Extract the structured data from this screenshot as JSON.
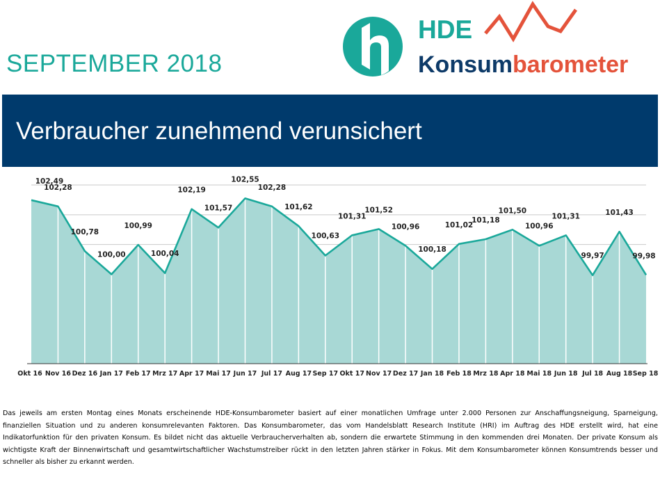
{
  "header": {
    "month_label": "SEPTEMBER 2018",
    "logo": {
      "mark_icon": "hde-h-logo-icon",
      "brand": "HDE",
      "product_prefix": "Konsum",
      "product_suffix": "barometer",
      "trend_icon": "zigzag-trend-icon",
      "colors": {
        "teal": "#1aa89a",
        "navy": "#0d3a68",
        "red": "#e4533b"
      }
    }
  },
  "banner": {
    "headline": "Verbraucher zunehmend verunsichert",
    "color": "#003a6c"
  },
  "chart_data": {
    "type": "area",
    "categories": [
      "Okt 16",
      "Nov 16",
      "Dez 16",
      "Jan 17",
      "Feb 17",
      "Mrz 17",
      "Apr 17",
      "Mai 17",
      "Jun 17",
      "Jul 17",
      "Aug 17",
      "Sep 17",
      "Okt 17",
      "Nov 17",
      "Dez 17",
      "Jan 18",
      "Feb 18",
      "Mrz 18",
      "Apr 18",
      "Mai 18",
      "Jun 18",
      "Jul 18",
      "Aug 18",
      "Sep 18"
    ],
    "values": [
      102.49,
      102.28,
      100.78,
      100.0,
      100.99,
      100.04,
      102.19,
      101.57,
      102.55,
      102.28,
      101.62,
      100.63,
      101.31,
      101.52,
      100.96,
      100.18,
      101.02,
      101.18,
      101.5,
      100.96,
      101.31,
      99.97,
      101.43,
      99.98
    ],
    "value_labels": [
      "102,49",
      "102,28",
      "100,78",
      "100,00",
      "100,99",
      "100,04",
      "102,19",
      "101,57",
      "102,55",
      "102,28",
      "101,62",
      "100,63",
      "101,31",
      "101,52",
      "100,96",
      "100,18",
      "101,02",
      "101,18",
      "101,50",
      "100,96",
      "101,31",
      "99,97",
      "101,43",
      "99,98"
    ],
    "title": "",
    "xlabel": "",
    "ylabel": "",
    "ylim": [
      97,
      103
    ],
    "grid": true,
    "colors": {
      "line": "#1aa89a",
      "fill": "#a8d8d5",
      "grid": "#c9c9c9"
    }
  },
  "description": "Das jeweils am ersten Montag eines Monats erscheinende HDE-Konsumbarometer basiert auf einer monatlichen Umfrage unter 2.000 Personen zur Anschaffungsneigung, Sparneigung, finanziellen Situation und zu anderen konsumrelevanten Faktoren. Das Konsumbarometer, das vom Handelsblatt Research Institute (HRI) im Auftrag des HDE erstellt wird, hat eine Indikatorfunktion für den privaten Konsum. Es bildet nicht das aktuelle Verbraucherverhalten ab, sondern die erwartete Stimmung in den kommenden drei Monaten. Der private Konsum als wichtigste Kraft der Binnenwirtschaft und gesamtwirtschaftlicher Wachstumstreiber rückt in den letzten Jahren stärker in Fokus. Mit dem Konsumbarometer können Konsumtrends besser und schneller als bisher zu erkannt werden."
}
